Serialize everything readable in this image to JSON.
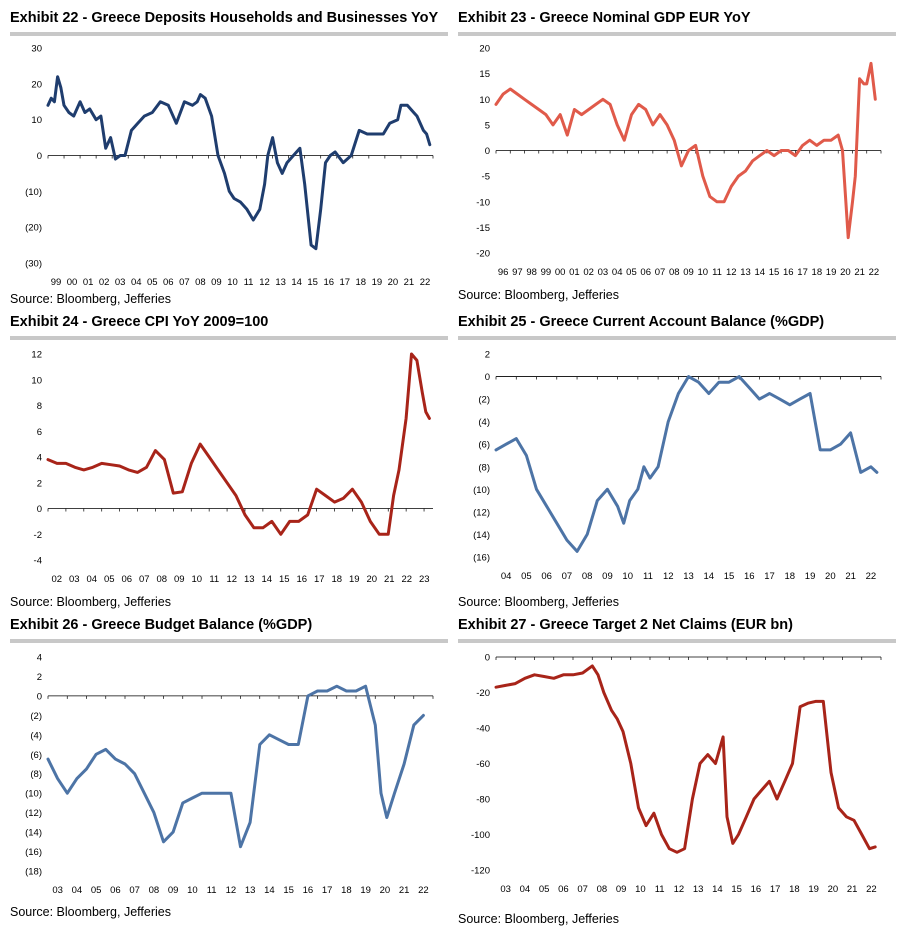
{
  "source_label": "Source: Bloomberg, Jefferies",
  "colors": {
    "navy": "#1f3d6e",
    "salmon": "#e05a4a",
    "darkred": "#a82419",
    "steel": "#4d74a6",
    "axis": "#000000",
    "rule": "#c8c8c8"
  },
  "chart_data": [
    {
      "id": "ex22",
      "type": "line",
      "title": "Exhibit 22 - Greece Deposits Households and Businesses YoY",
      "color": "#1f3d6e",
      "x_range": [
        1999,
        2023
      ],
      "ylim": [
        -30,
        30
      ],
      "y_ticks": [
        30,
        20,
        10,
        0,
        -10,
        -20,
        -30
      ],
      "y_tick_labels": [
        "30",
        "20",
        "10",
        "0",
        "(10)",
        "(20)",
        "(30)"
      ],
      "x_tick_labels": [
        "99",
        "00",
        "01",
        "02",
        "03",
        "04",
        "05",
        "06",
        "07",
        "08",
        "09",
        "10",
        "11",
        "12",
        "13",
        "14",
        "15",
        "16",
        "17",
        "18",
        "19",
        "20",
        "21",
        "22"
      ],
      "x": [
        1999.0,
        1999.2,
        1999.4,
        1999.6,
        1999.8,
        2000.0,
        2000.3,
        2000.6,
        2001.0,
        2001.3,
        2001.6,
        2002.0,
        2002.3,
        2002.6,
        2002.9,
        2003.2,
        2003.5,
        2003.8,
        2004.2,
        2004.6,
        2005.0,
        2005.5,
        2006.0,
        2006.5,
        2007.0,
        2007.5,
        2008.0,
        2008.3,
        2008.5,
        2008.8,
        2009.2,
        2009.6,
        2010.0,
        2010.3,
        2010.6,
        2011.0,
        2011.4,
        2011.8,
        2012.2,
        2012.5,
        2012.7,
        2013.0,
        2013.3,
        2013.6,
        2013.9,
        2014.3,
        2014.7,
        2015.0,
        2015.4,
        2015.7,
        2016.0,
        2016.3,
        2016.6,
        2016.9,
        2017.4,
        2017.9,
        2018.4,
        2018.9,
        2019.4,
        2019.9,
        2020.3,
        2020.8,
        2021.0,
        2021.4,
        2021.8,
        2022.0,
        2022.4,
        2022.6,
        2022.8
      ],
      "y": [
        14,
        16,
        15,
        22,
        19,
        14,
        12,
        11,
        15,
        12,
        13,
        10,
        11,
        2,
        5,
        -1,
        0,
        0,
        7,
        9,
        11,
        12,
        15,
        14,
        9,
        15,
        14,
        15,
        17,
        16,
        11,
        0,
        -5,
        -10,
        -12,
        -13,
        -15,
        -18,
        -15,
        -8,
        0,
        5,
        -2,
        -5,
        -2,
        0,
        2,
        -8,
        -25,
        -26,
        -15,
        -2,
        0,
        1,
        -2,
        0,
        7,
        6,
        6,
        6,
        9,
        10,
        14,
        14,
        12,
        11,
        7,
        6,
        3
      ],
      "series_name": "Deposits YoY"
    },
    {
      "id": "ex23",
      "type": "line",
      "title": "Exhibit 23 - Greece Nominal GDP EUR YoY",
      "color": "#e05a4a",
      "x_range": [
        1996,
        2023
      ],
      "ylim": [
        -20,
        20
      ],
      "y_ticks": [
        20,
        15,
        10,
        5,
        0,
        -5,
        -10,
        -15,
        -20
      ],
      "y_tick_labels": [
        "20",
        "15",
        "10",
        "5",
        "0",
        "-5",
        "-10",
        "-15",
        "-20"
      ],
      "x_tick_labels": [
        "96",
        "97",
        "98",
        "99",
        "00",
        "01",
        "02",
        "03",
        "04",
        "05",
        "06",
        "07",
        "08",
        "09",
        "10",
        "11",
        "12",
        "13",
        "14",
        "15",
        "16",
        "17",
        "18",
        "19",
        "20",
        "21",
        "22"
      ],
      "x": [
        1996.0,
        1996.5,
        1997.0,
        1997.5,
        1998.0,
        1998.5,
        1999.0,
        1999.5,
        2000.0,
        2000.5,
        2001.0,
        2001.5,
        2002.0,
        2002.5,
        2003.0,
        2003.5,
        2004.0,
        2004.5,
        2005.0,
        2005.5,
        2006.0,
        2006.5,
        2007.0,
        2007.5,
        2008.0,
        2008.5,
        2009.0,
        2009.5,
        2010.0,
        2010.5,
        2011.0,
        2011.5,
        2012.0,
        2012.5,
        2013.0,
        2013.5,
        2014.0,
        2014.5,
        2015.0,
        2015.5,
        2016.0,
        2016.5,
        2017.0,
        2017.5,
        2018.0,
        2018.5,
        2019.0,
        2019.5,
        2020.0,
        2020.3,
        2020.7,
        2021.0,
        2021.2,
        2021.5,
        2021.8,
        2022.0,
        2022.3,
        2022.6
      ],
      "y": [
        9,
        11,
        12,
        11,
        10,
        9,
        8,
        7,
        5,
        7,
        3,
        8,
        7,
        8,
        9,
        10,
        9,
        5,
        2,
        7,
        9,
        8,
        5,
        7,
        5,
        2,
        -3,
        0,
        1,
        -5,
        -9,
        -10,
        -10,
        -7,
        -5,
        -4,
        -2,
        -1,
        0,
        -1,
        0,
        0,
        -1,
        1,
        2,
        1,
        2,
        2,
        3,
        0,
        -17,
        -10,
        -5,
        14,
        13,
        13,
        17,
        10
      ],
      "series_name": "Nominal GDP YoY"
    },
    {
      "id": "ex24",
      "type": "line",
      "title": "Exhibit 24 - Greece CPI YoY 2009=100",
      "color": "#a82419",
      "x_range": [
        2002,
        2023.5
      ],
      "ylim": [
        -4,
        12
      ],
      "y_ticks": [
        12,
        10,
        8,
        6,
        4,
        2,
        0,
        -2,
        -4
      ],
      "y_tick_labels": [
        "12",
        "10",
        "8",
        "6",
        "4",
        "2",
        "0",
        "-2",
        "-4"
      ],
      "x_tick_labels": [
        "02",
        "03",
        "04",
        "05",
        "06",
        "07",
        "08",
        "09",
        "10",
        "11",
        "12",
        "13",
        "14",
        "15",
        "16",
        "17",
        "18",
        "19",
        "20",
        "21",
        "22",
        "23"
      ],
      "x": [
        2002.0,
        2002.5,
        2003.0,
        2003.5,
        2004.0,
        2004.5,
        2005.0,
        2005.5,
        2006.0,
        2006.5,
        2007.0,
        2007.5,
        2008.0,
        2008.5,
        2009.0,
        2009.5,
        2010.0,
        2010.5,
        2011.0,
        2011.5,
        2012.0,
        2012.5,
        2013.0,
        2013.5,
        2014.0,
        2014.5,
        2015.0,
        2015.5,
        2016.0,
        2016.5,
        2017.0,
        2017.5,
        2018.0,
        2018.5,
        2019.0,
        2019.5,
        2020.0,
        2020.5,
        2021.0,
        2021.3,
        2021.6,
        2022.0,
        2022.3,
        2022.6,
        2022.9,
        2023.1,
        2023.3
      ],
      "y": [
        3.8,
        3.5,
        3.5,
        3.2,
        3.0,
        3.2,
        3.5,
        3.4,
        3.3,
        3.0,
        2.8,
        3.2,
        4.5,
        3.8,
        1.2,
        1.3,
        3.5,
        5.0,
        4.0,
        3.0,
        2.0,
        1.0,
        -0.5,
        -1.5,
        -1.5,
        -1.0,
        -2.0,
        -1.0,
        -1.0,
        -0.5,
        1.5,
        1.0,
        0.5,
        0.8,
        1.5,
        0.5,
        -1.0,
        -2.0,
        -2.0,
        1.0,
        3.0,
        7.0,
        12.0,
        11.5,
        9.0,
        7.5,
        7.0
      ],
      "series_name": "CPI YoY"
    },
    {
      "id": "ex25",
      "type": "line",
      "title": "Exhibit 25 - Greece Current Account Balance (%GDP)",
      "color": "#4d74a6",
      "x_range": [
        2004,
        2023
      ],
      "ylim": [
        -16,
        2
      ],
      "y_ticks": [
        2,
        0,
        -2,
        -4,
        -6,
        -8,
        -10,
        -12,
        -14,
        -16
      ],
      "y_tick_labels": [
        "2",
        "0",
        "(2)",
        "(4)",
        "(6)",
        "(8)",
        "(10)",
        "(12)",
        "(14)",
        "(16)"
      ],
      "x_tick_labels": [
        "04",
        "05",
        "06",
        "07",
        "08",
        "09",
        "10",
        "11",
        "12",
        "13",
        "14",
        "15",
        "16",
        "17",
        "18",
        "19",
        "20",
        "21",
        "22"
      ],
      "x": [
        2004.0,
        2004.5,
        2005.0,
        2005.5,
        2006.0,
        2006.5,
        2007.0,
        2007.5,
        2008.0,
        2008.5,
        2009.0,
        2009.5,
        2010.0,
        2010.3,
        2010.6,
        2011.0,
        2011.3,
        2011.6,
        2012.0,
        2012.5,
        2013.0,
        2013.5,
        2014.0,
        2014.5,
        2015.0,
        2015.5,
        2016.0,
        2016.5,
        2017.0,
        2017.5,
        2018.0,
        2018.5,
        2019.0,
        2019.5,
        2020.0,
        2020.5,
        2021.0,
        2021.5,
        2022.0,
        2022.5,
        2022.8
      ],
      "y": [
        -6.5,
        -6.0,
        -5.5,
        -7.0,
        -10.0,
        -11.5,
        -13.0,
        -14.5,
        -15.5,
        -14.0,
        -11.0,
        -10.0,
        -11.5,
        -13.0,
        -11.0,
        -10.0,
        -8.0,
        -9.0,
        -8.0,
        -4.0,
        -1.5,
        0.0,
        -0.5,
        -1.5,
        -0.5,
        -0.5,
        0.0,
        -1.0,
        -2.0,
        -1.5,
        -2.0,
        -2.5,
        -2.0,
        -1.5,
        -6.5,
        -6.5,
        -6.0,
        -5.0,
        -8.5,
        -8.0,
        -8.5
      ],
      "series_name": "Current Account Balance"
    },
    {
      "id": "ex26",
      "type": "line",
      "title": "Exhibit 26 - Greece Budget Balance (%GDP)",
      "color": "#4d74a6",
      "x_range": [
        2003,
        2023
      ],
      "ylim": [
        -18,
        4
      ],
      "y_ticks": [
        4,
        2,
        0,
        -2,
        -4,
        -6,
        -8,
        -10,
        -12,
        -14,
        -16,
        -18
      ],
      "y_tick_labels": [
        "4",
        "2",
        "0",
        "(2)",
        "(4)",
        "(6)",
        "(8)",
        "(10)",
        "(12)",
        "(14)",
        "(16)",
        "(18)"
      ],
      "x_tick_labels": [
        "03",
        "04",
        "05",
        "06",
        "07",
        "08",
        "09",
        "10",
        "11",
        "12",
        "13",
        "14",
        "15",
        "16",
        "17",
        "18",
        "19",
        "20",
        "21",
        "22"
      ],
      "x": [
        2003.0,
        2003.5,
        2004.0,
        2004.5,
        2005.0,
        2005.5,
        2006.0,
        2006.5,
        2007.0,
        2007.5,
        2008.0,
        2008.5,
        2009.0,
        2009.5,
        2010.0,
        2010.5,
        2011.0,
        2011.5,
        2012.0,
        2012.5,
        2013.0,
        2013.5,
        2014.0,
        2014.5,
        2015.0,
        2015.5,
        2016.0,
        2016.5,
        2017.0,
        2017.5,
        2018.0,
        2018.5,
        2019.0,
        2019.5,
        2020.0,
        2020.3,
        2020.6,
        2021.0,
        2021.5,
        2022.0,
        2022.5
      ],
      "y": [
        -6.5,
        -8.5,
        -10.0,
        -8.5,
        -7.5,
        -6.0,
        -5.5,
        -6.5,
        -7.0,
        -8.0,
        -10.0,
        -12.0,
        -15.0,
        -14.0,
        -11.0,
        -10.5,
        -10.0,
        -10.0,
        -10.0,
        -10.0,
        -15.5,
        -13.0,
        -5.0,
        -4.0,
        -4.5,
        -5.0,
        -5.0,
        0.0,
        0.5,
        0.5,
        1.0,
        0.5,
        0.5,
        1.0,
        -3.0,
        -10.0,
        -12.5,
        -10.0,
        -7.0,
        -3.0,
        -2.0
      ],
      "series_name": "Budget Balance"
    },
    {
      "id": "ex27",
      "type": "line",
      "title": "Exhibit 27 - Greece Target 2 Net Claims (EUR bn)",
      "color": "#a82419",
      "x_range": [
        2003,
        2023
      ],
      "ylim": [
        -120,
        0
      ],
      "y_ticks": [
        0,
        -20,
        -40,
        -60,
        -80,
        -100,
        -120
      ],
      "y_tick_labels": [
        "0",
        "-20",
        "-40",
        "-60",
        "-80",
        "-100",
        "-120"
      ],
      "x_tick_labels": [
        "03",
        "04",
        "05",
        "06",
        "07",
        "08",
        "09",
        "10",
        "11",
        "12",
        "13",
        "14",
        "15",
        "16",
        "17",
        "18",
        "19",
        "20",
        "21",
        "22"
      ],
      "x": [
        2003.0,
        2003.5,
        2004.0,
        2004.5,
        2005.0,
        2005.5,
        2006.0,
        2006.5,
        2007.0,
        2007.5,
        2008.0,
        2008.3,
        2008.6,
        2009.0,
        2009.3,
        2009.6,
        2010.0,
        2010.4,
        2010.8,
        2011.2,
        2011.6,
        2012.0,
        2012.4,
        2012.8,
        2013.2,
        2013.6,
        2014.0,
        2014.4,
        2014.8,
        2015.0,
        2015.3,
        2015.6,
        2016.0,
        2016.4,
        2016.8,
        2017.2,
        2017.6,
        2018.0,
        2018.4,
        2018.8,
        2019.2,
        2019.6,
        2020.0,
        2020.4,
        2020.8,
        2021.2,
        2021.6,
        2022.0,
        2022.4,
        2022.7
      ],
      "y": [
        -17,
        -16,
        -15,
        -12,
        -10,
        -11,
        -12,
        -10,
        -10,
        -9,
        -5,
        -10,
        -20,
        -30,
        -35,
        -42,
        -60,
        -85,
        -95,
        -88,
        -100,
        -108,
        -110,
        -108,
        -80,
        -60,
        -55,
        -60,
        -45,
        -90,
        -105,
        -100,
        -90,
        -80,
        -75,
        -70,
        -80,
        -70,
        -60,
        -28,
        -26,
        -25,
        -25,
        -65,
        -85,
        -90,
        -92,
        -100,
        -108,
        -107
      ],
      "series_name": "Target 2 Net Claims"
    }
  ]
}
